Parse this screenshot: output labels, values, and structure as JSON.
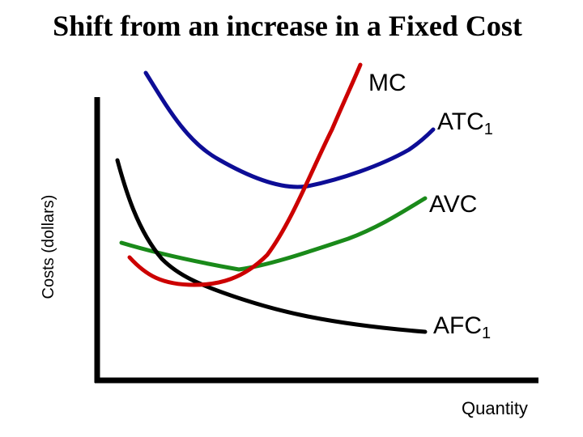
{
  "title": "Shift from an increase in a Fixed Cost",
  "axes": {
    "y_label": "Costs (dollars)",
    "x_label": "Quantity"
  },
  "curves": [
    {
      "label": "MC"
    },
    {
      "label": "ATC",
      "subscript": "1"
    },
    {
      "label": "AVC"
    },
    {
      "label": "AFC",
      "subscript": "1"
    }
  ]
}
